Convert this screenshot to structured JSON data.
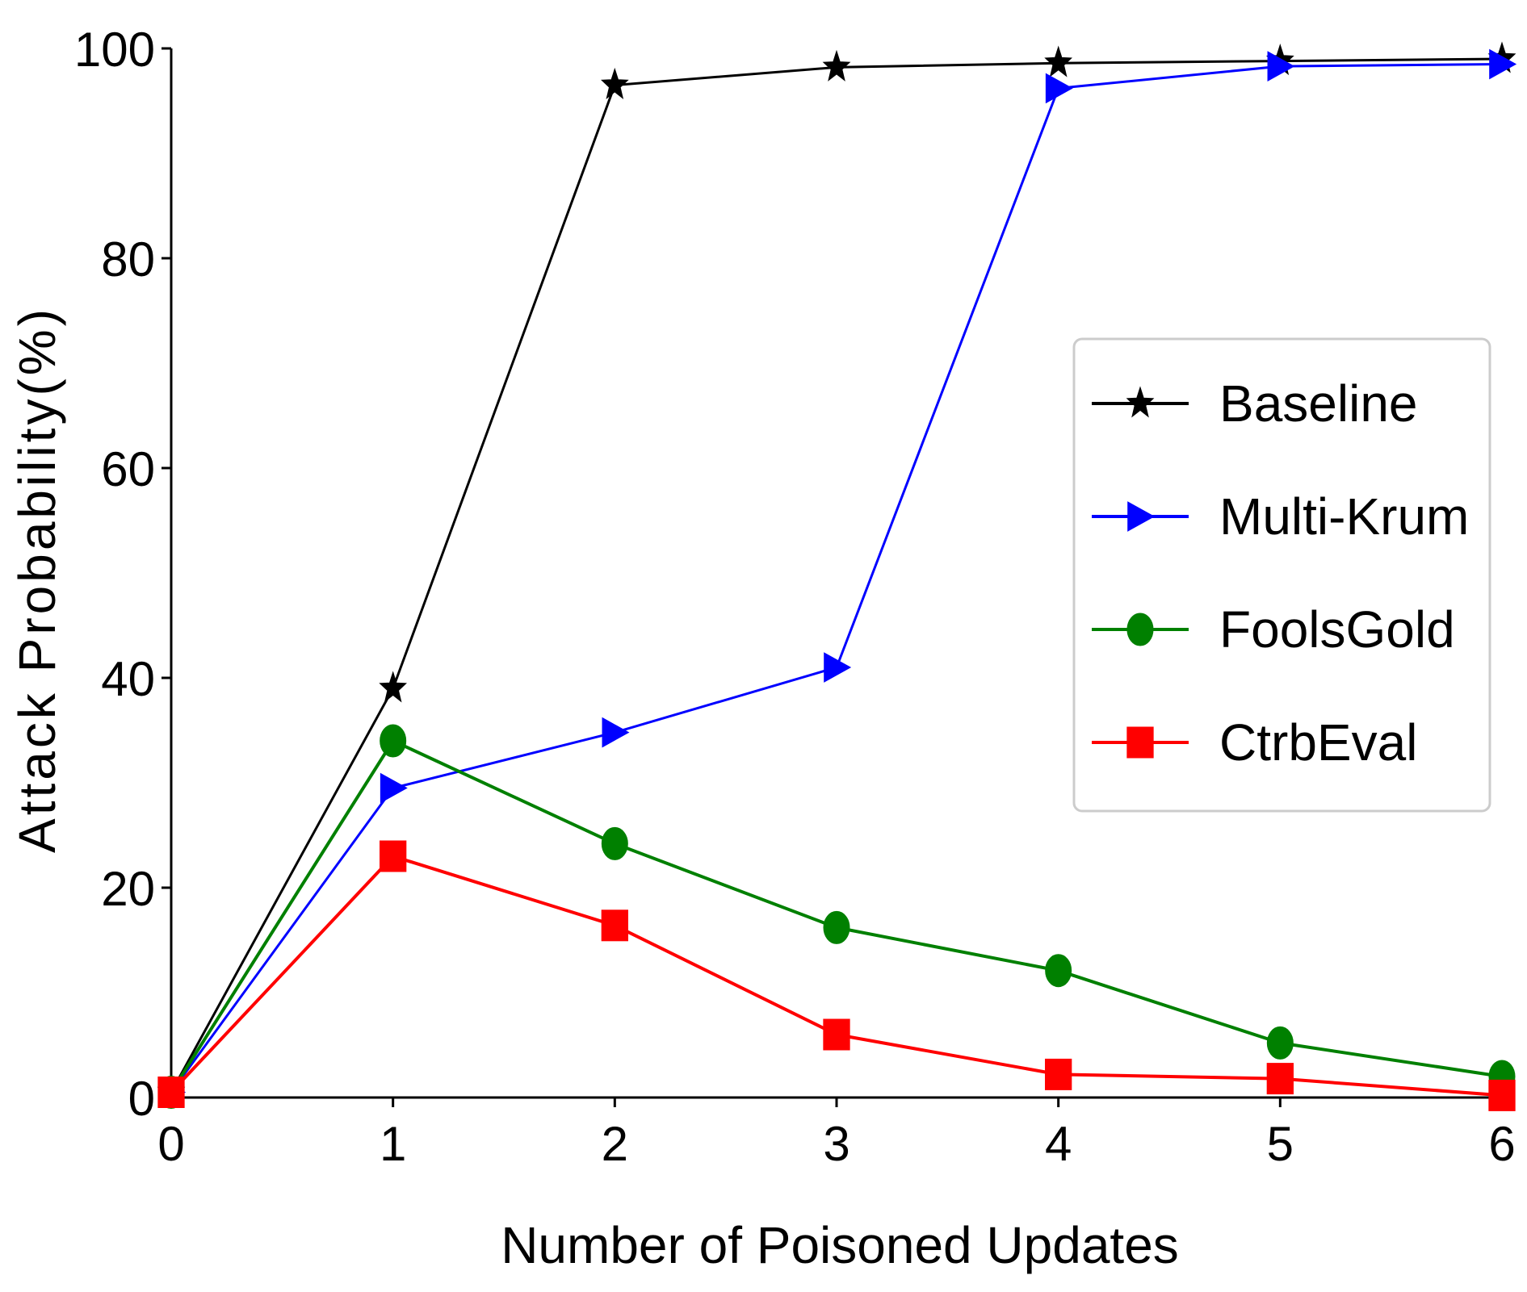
{
  "chart_data": {
    "type": "line",
    "title": "",
    "xlabel": "Number of Poisoned Updates",
    "ylabel": "Attack Probability(%)",
    "x": [
      0,
      1,
      2,
      3,
      4,
      5,
      6
    ],
    "xlim": [
      0,
      6
    ],
    "ylim": [
      0,
      100
    ],
    "xticks": [
      "0",
      "1",
      "2",
      "3",
      "4",
      "5",
      "6"
    ],
    "yticks": [
      "0",
      "20",
      "40",
      "60",
      "80",
      "100"
    ],
    "grid": false,
    "legend_position": "center-right",
    "series": [
      {
        "name": "Baseline",
        "color": "#000000",
        "marker": "star",
        "values": [
          0.5,
          39,
          96.5,
          98.2,
          98.6,
          98.8,
          99.0
        ]
      },
      {
        "name": "Multi-Krum",
        "color": "#0000ff",
        "marker": "triangle",
        "values": [
          0.5,
          29.5,
          34.8,
          41.0,
          96.2,
          98.3,
          98.5
        ]
      },
      {
        "name": "FoolsGold",
        "color": "#008000",
        "marker": "circle",
        "values": [
          0.5,
          34,
          24.2,
          16.2,
          12.1,
          5.2,
          2.0
        ]
      },
      {
        "name": "CtrbEval",
        "color": "#ff0000",
        "marker": "square",
        "values": [
          0.5,
          23,
          16.4,
          6.0,
          2.2,
          1.8,
          0.2
        ]
      }
    ]
  }
}
